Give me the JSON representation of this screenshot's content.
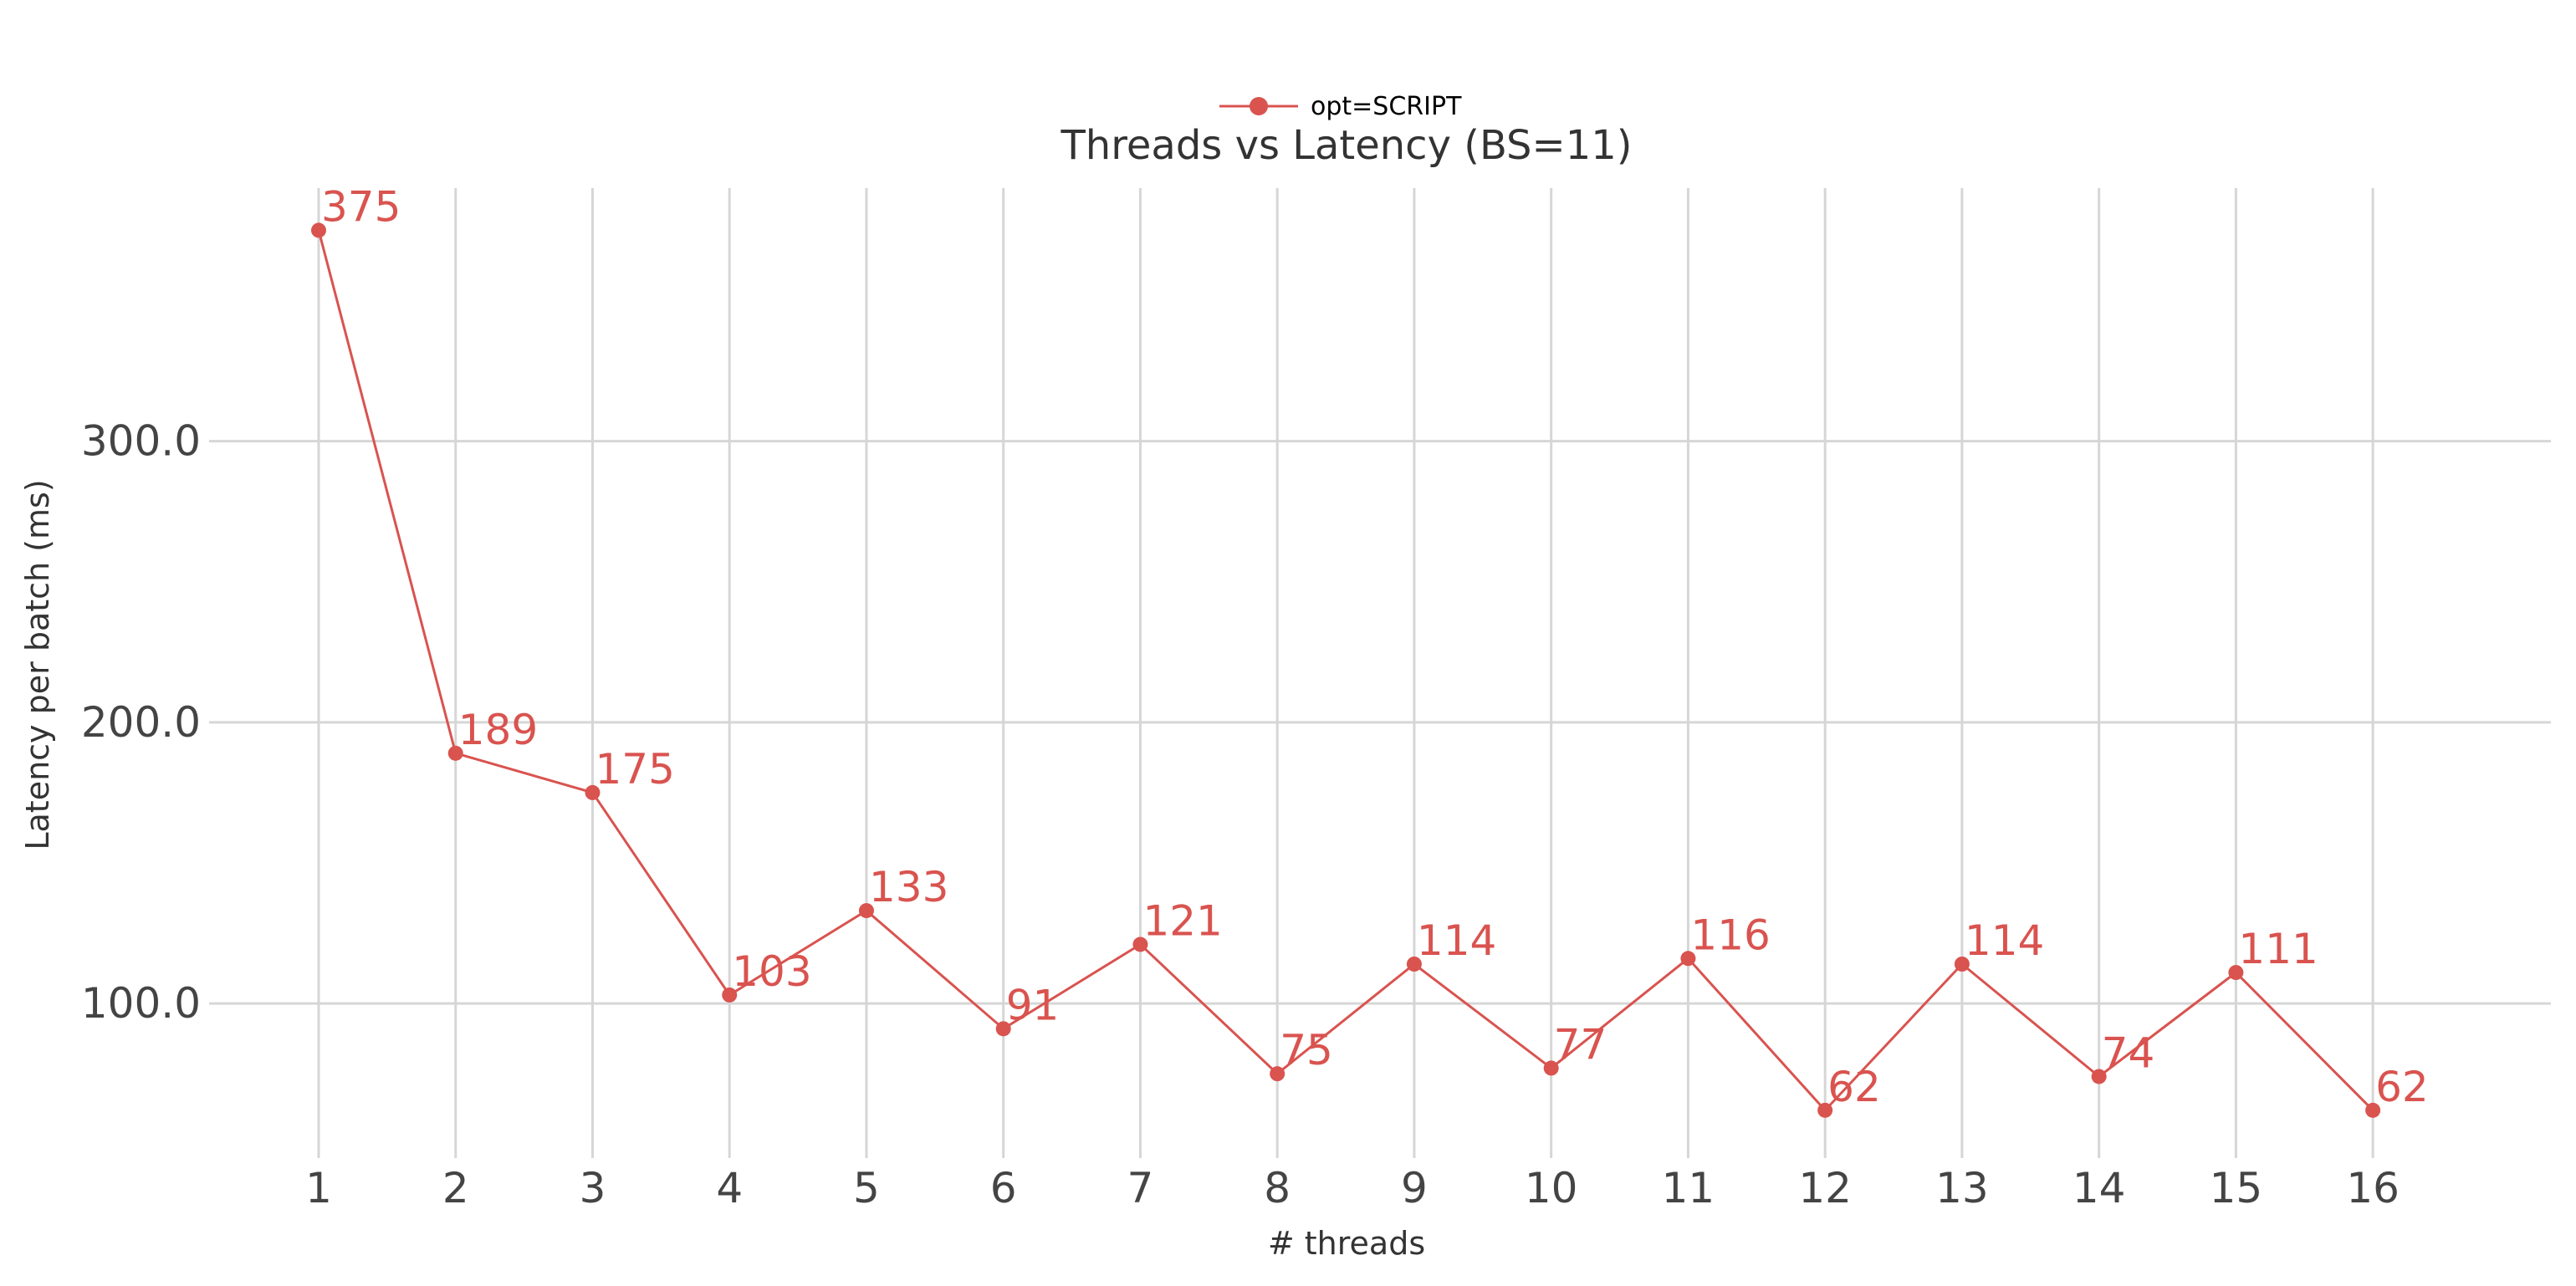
{
  "chart_data": {
    "type": "line",
    "title": "Threads vs Latency (BS=11)",
    "xlabel": "# threads",
    "ylabel": "Latency per batch (ms)",
    "x": [
      1,
      2,
      3,
      4,
      5,
      6,
      7,
      8,
      9,
      10,
      11,
      12,
      13,
      14,
      15,
      16
    ],
    "x_tick_labels": [
      "1",
      "2",
      "3",
      "4",
      "5",
      "6",
      "7",
      "8",
      "9",
      "10",
      "11",
      "12",
      "13",
      "14",
      "15",
      "16"
    ],
    "y_ticks": [
      100,
      200,
      300
    ],
    "y_tick_labels": [
      "100.0",
      "200.0",
      "300.0"
    ],
    "ylim": [
      45,
      390
    ],
    "xlim": [
      0.2,
      17.3
    ],
    "grid": true,
    "legend_position": "top-center",
    "series": [
      {
        "name": "opt=SCRIPT",
        "color": "#d9534f",
        "values": [
          375,
          189,
          175,
          103,
          133,
          91,
          121,
          75,
          114,
          77,
          116,
          62,
          114,
          74,
          111,
          62
        ],
        "data_labels": [
          "375",
          "189",
          "175",
          "103",
          "133",
          "91",
          "121",
          "75",
          "114",
          "77",
          "116",
          "62",
          "114",
          "74",
          "111",
          "62"
        ]
      }
    ]
  }
}
